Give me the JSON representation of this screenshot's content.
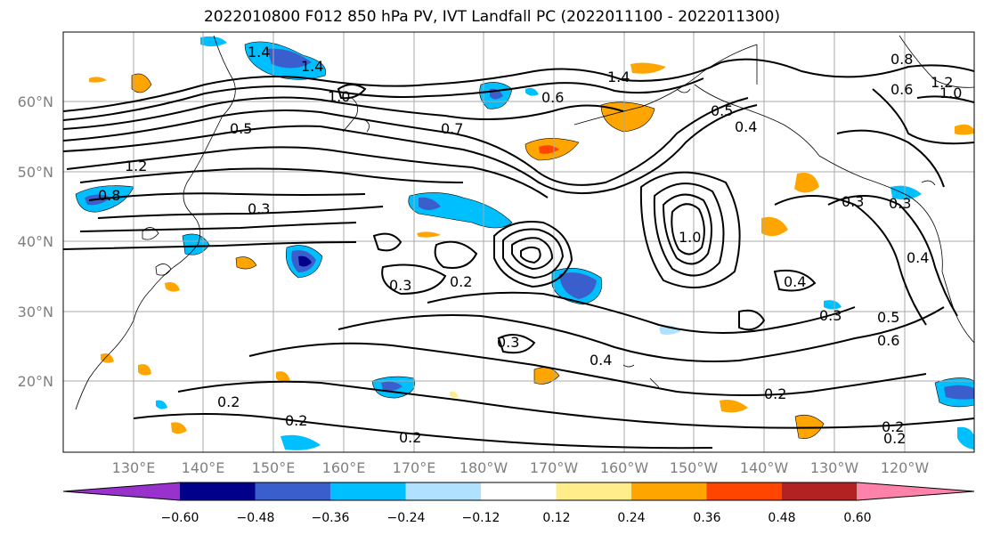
{
  "title": "2022010800 F012 850 hPa PV, IVT Landfall PC (2022011100 - 2022011300)",
  "map": {
    "lat_labels": [
      "60°N",
      "50°N",
      "40°N",
      "30°N",
      "20°N"
    ],
    "lon_labels": [
      "130°E",
      "140°E",
      "150°E",
      "160°E",
      "170°E",
      "180°W",
      "170°W",
      "160°W",
      "150°W",
      "140°W",
      "130°W",
      "120°W"
    ],
    "contour_labels": [
      "1.4",
      "1.4",
      "1.0",
      "0.5",
      "0.7",
      "1.2",
      "0.8",
      "0.6",
      "0.3",
      "0.3",
      "0.2",
      "0.3",
      "0.2",
      "0.4",
      "0.2",
      "0.2",
      "0.2",
      "1.0",
      "0.5",
      "0.4",
      "0.8",
      "1.2",
      "1.0",
      "0.6",
      "0.3",
      "0.4",
      "0.3",
      "0.5",
      "0.4",
      "0.3",
      "0.6",
      "0.2",
      "0.2",
      "1.4"
    ]
  },
  "colorbar": {
    "colors": [
      "#9932cc",
      "#00008b",
      "#3a5fcd",
      "#00bfff",
      "#b0e2ff",
      "#ffffff",
      "#ffec8b",
      "#ffa500",
      "#ff4500",
      "#b22222",
      "#ff82ab"
    ],
    "ticks": [
      "−0.60",
      "−0.48",
      "−0.36",
      "−0.24",
      "−0.12",
      "0.12",
      "0.24",
      "0.36",
      "0.48",
      "0.60"
    ]
  }
}
